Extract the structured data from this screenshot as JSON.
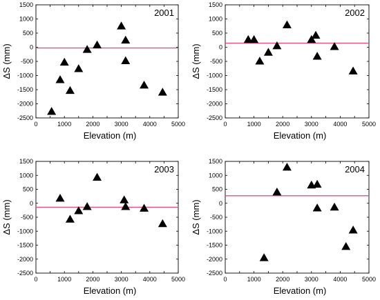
{
  "chart_data": [
    {
      "type": "scatter",
      "title": "2001",
      "xlabel": "Elevation (m)",
      "ylabel": "ΔS (mm)",
      "xlim": [
        0,
        5000
      ],
      "ylim": [
        -2500,
        1500
      ],
      "xticks": [
        "0",
        "500",
        "1000",
        "1500",
        "2000",
        "2500",
        "3000",
        "3500",
        "4000",
        "4500",
        "5000"
      ],
      "yticks": [
        "1500",
        "1000",
        "500",
        "0",
        "-500",
        "-1000",
        "-1500",
        "-2000",
        "-2500"
      ],
      "reference_line": -25,
      "reference_color": "#e0507a",
      "marker": "triangle",
      "points": [
        {
          "x": 550,
          "y": -2270
        },
        {
          "x": 850,
          "y": -1150
        },
        {
          "x": 1000,
          "y": -530
        },
        {
          "x": 1200,
          "y": -1530
        },
        {
          "x": 1500,
          "y": -760
        },
        {
          "x": 1800,
          "y": -80
        },
        {
          "x": 2150,
          "y": 80
        },
        {
          "x": 3000,
          "y": 750
        },
        {
          "x": 3150,
          "y": 250
        },
        {
          "x": 3150,
          "y": -480
        },
        {
          "x": 3800,
          "y": -1340
        },
        {
          "x": 4450,
          "y": -1590
        }
      ]
    },
    {
      "type": "scatter",
      "title": "2002",
      "xlabel": "Elevation (m)",
      "ylabel": "ΔS (mm)",
      "xlim": [
        0,
        5000
      ],
      "ylim": [
        -2500,
        1500
      ],
      "xticks": [
        "0",
        "500",
        "1000",
        "1500",
        "2000",
        "2500",
        "3000",
        "3500",
        "4000",
        "4500",
        "5000"
      ],
      "yticks": [
        "1500",
        "1000",
        "500",
        "0",
        "-500",
        "-1000",
        "-1500",
        "-2000",
        "-2500"
      ],
      "reference_line": 145,
      "reference_color": "#e0507a",
      "marker": "triangle",
      "points": [
        {
          "x": 800,
          "y": 270
        },
        {
          "x": 1000,
          "y": 270
        },
        {
          "x": 1200,
          "y": -490
        },
        {
          "x": 1500,
          "y": -180
        },
        {
          "x": 1800,
          "y": 50
        },
        {
          "x": 2150,
          "y": 790
        },
        {
          "x": 3000,
          "y": 270
        },
        {
          "x": 3150,
          "y": 420
        },
        {
          "x": 3200,
          "y": -320
        },
        {
          "x": 3800,
          "y": 20
        },
        {
          "x": 4450,
          "y": -840
        }
      ]
    },
    {
      "type": "scatter",
      "title": "2003",
      "xlabel": "Elevation (m)",
      "ylabel": "ΔS (mm)",
      "xlim": [
        0,
        5000
      ],
      "ylim": [
        -2500,
        1500
      ],
      "xticks": [
        "0",
        "500",
        "1000",
        "1500",
        "2000",
        "2500",
        "3000",
        "3500",
        "4000",
        "4500",
        "5000"
      ],
      "yticks": [
        "1500",
        "1000",
        "500",
        "0",
        "-500",
        "-1000",
        "-1500",
        "-2000",
        "-2500"
      ],
      "reference_line": -140,
      "reference_color": "#e0507a",
      "marker": "triangle",
      "points": [
        {
          "x": 850,
          "y": 180
        },
        {
          "x": 1200,
          "y": -570
        },
        {
          "x": 1500,
          "y": -270
        },
        {
          "x": 1800,
          "y": -120
        },
        {
          "x": 2150,
          "y": 930
        },
        {
          "x": 3100,
          "y": 120
        },
        {
          "x": 3150,
          "y": -120
        },
        {
          "x": 3800,
          "y": -180
        },
        {
          "x": 4450,
          "y": -730
        }
      ]
    },
    {
      "type": "scatter",
      "title": "2004",
      "xlabel": "Elevation (m)",
      "ylabel": "ΔS (mm)",
      "xlim": [
        0,
        5000
      ],
      "ylim": [
        -2500,
        1500
      ],
      "xticks": [
        "0",
        "500",
        "1000",
        "1500",
        "2000",
        "2500",
        "3000",
        "3500",
        "4000",
        "4500",
        "5000"
      ],
      "yticks": [
        "1500",
        "1000",
        "500",
        "0",
        "-500",
        "-1000",
        "-1500",
        "-2000",
        "-2500"
      ],
      "reference_line": 270,
      "reference_color": "#e0507a",
      "marker": "triangle",
      "points": [
        {
          "x": 1350,
          "y": -1950
        },
        {
          "x": 1800,
          "y": 400
        },
        {
          "x": 2150,
          "y": 1290
        },
        {
          "x": 3000,
          "y": 650
        },
        {
          "x": 3200,
          "y": 680
        },
        {
          "x": 3200,
          "y": -170
        },
        {
          "x": 3800,
          "y": -140
        },
        {
          "x": 4200,
          "y": -1550
        },
        {
          "x": 4450,
          "y": -960
        }
      ]
    }
  ]
}
